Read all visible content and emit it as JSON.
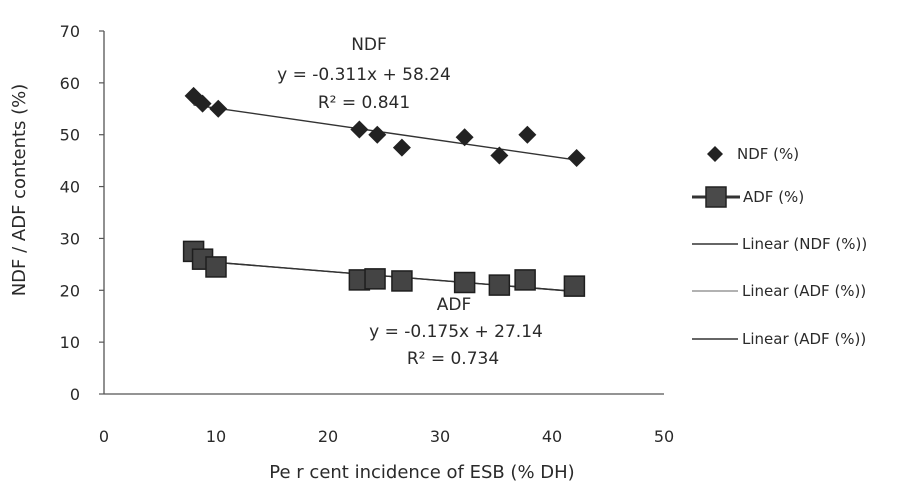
{
  "chart_data": {
    "type": "scatter",
    "title": "",
    "xlabel": "Pe r cent incidence of  ESB (% DH)",
    "ylabel": "NDF / ADF  contents (%)",
    "xlim": [
      0,
      50
    ],
    "ylim": [
      0,
      70
    ],
    "x_ticks": [
      "0",
      "10",
      "20",
      "30",
      "40",
      "50"
    ],
    "y_ticks": [
      "0",
      "10",
      "20",
      "30",
      "40",
      "50",
      "60",
      "70"
    ],
    "grid": false,
    "legend_position": "right",
    "colors": {
      "ndf": "#222222",
      "adf": "#444444",
      "ndf_line": "#333333",
      "adf_line": "#333333"
    },
    "series": [
      {
        "name": "NDF (%)",
        "marker": "diamond",
        "x": [
          8,
          8.8,
          10.2,
          22.8,
          24.4,
          26.6,
          32.2,
          35.3,
          37.8,
          42.2
        ],
        "y": [
          57.5,
          56,
          55,
          51,
          50,
          47.5,
          49.5,
          46,
          50,
          45.5
        ]
      },
      {
        "name": "ADF (%)",
        "marker": "square",
        "x": [
          8,
          8.8,
          10,
          22.8,
          24.2,
          26.6,
          32.2,
          35.3,
          37.6,
          42
        ],
        "y": [
          27.5,
          26,
          24.5,
          22,
          22.2,
          21.8,
          21.5,
          21,
          22,
          20.8
        ]
      }
    ],
    "trendlines": [
      {
        "name": "Linear (NDF (%))",
        "slope": -0.311,
        "intercept": 58.24,
        "x_range": [
          8,
          42.2
        ]
      },
      {
        "name": "Linear (ADF (%))",
        "slope": -0.175,
        "intercept": 27.14,
        "x_range": [
          8,
          42
        ]
      },
      {
        "name": "Linear (ADF (%))",
        "slope": -0.175,
        "intercept": 27.14,
        "x_range": [
          8,
          42
        ]
      }
    ],
    "annotations": {
      "ndf": {
        "name": "NDF",
        "equation": "y = -0.311x + 58.24",
        "r2": "R² = 0.841"
      },
      "adf": {
        "name": "ADF",
        "equation": "y = -0.175x + 27.14",
        "r2": "R² = 0.734"
      }
    },
    "legend": [
      "NDF (%)",
      "ADF (%)",
      "Linear (NDF (%))",
      "Linear (ADF (%))",
      "Linear (ADF (%))"
    ]
  }
}
